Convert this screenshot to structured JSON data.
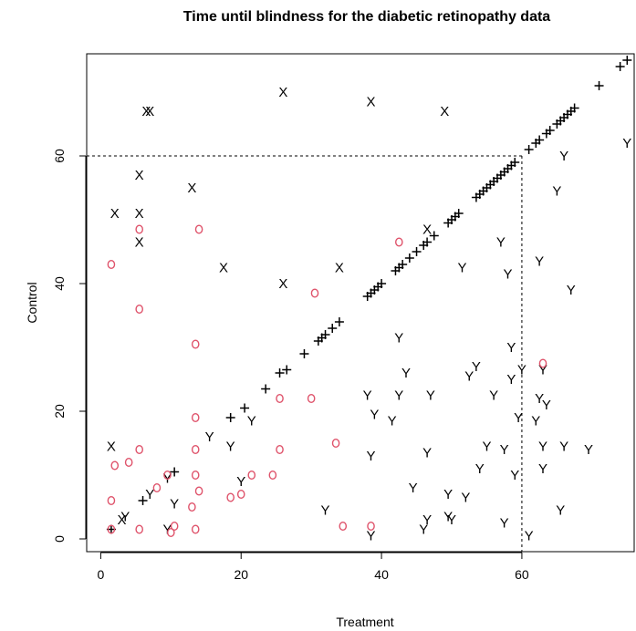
{
  "chart_data": {
    "type": "scatter",
    "title": "Time until blindness for the diabetic retinopathy data",
    "xlabel": "Treatment",
    "ylabel": "Control",
    "xlim": [
      -2,
      76
    ],
    "ylim": [
      -2,
      76
    ],
    "xticks": [
      0,
      20,
      40,
      60
    ],
    "yticks": [
      0,
      20,
      40,
      60
    ],
    "grid": false,
    "reference_lines": {
      "x": 60,
      "y": 60,
      "style": "dashed"
    },
    "colors": {
      "plus": "#000000",
      "X": "#000000",
      "Y": "#000000",
      "o": "#DF536B"
    },
    "series": [
      {
        "symbol": "+",
        "points": [
          [
            1.5,
            1.5
          ],
          [
            6,
            6
          ],
          [
            10.5,
            10.5
          ],
          [
            18.5,
            19
          ],
          [
            20.5,
            20.5
          ],
          [
            23.5,
            23.5
          ],
          [
            25.5,
            26
          ],
          [
            26.5,
            26.5
          ],
          [
            29,
            29
          ],
          [
            31,
            31
          ],
          [
            31.5,
            31.5
          ],
          [
            32,
            32
          ],
          [
            33,
            33
          ],
          [
            34,
            34
          ],
          [
            38,
            38
          ],
          [
            38.5,
            38.5
          ],
          [
            39,
            39
          ],
          [
            39.5,
            39.5
          ],
          [
            40,
            40
          ],
          [
            42,
            42
          ],
          [
            42.5,
            42.5
          ],
          [
            43,
            43
          ],
          [
            44,
            44
          ],
          [
            45,
            45
          ],
          [
            46,
            46
          ],
          [
            46.5,
            46.5
          ],
          [
            47.5,
            47.5
          ],
          [
            49.5,
            49.5
          ],
          [
            50,
            50
          ],
          [
            50.5,
            50.5
          ],
          [
            51,
            51
          ],
          [
            53.5,
            53.5
          ],
          [
            54,
            54
          ],
          [
            54.5,
            54.5
          ],
          [
            55,
            55
          ],
          [
            55.5,
            55.5
          ],
          [
            56,
            56
          ],
          [
            56.5,
            56.5
          ],
          [
            57,
            57
          ],
          [
            57.5,
            57.5
          ],
          [
            58,
            58
          ],
          [
            58.5,
            58.5
          ],
          [
            59,
            59
          ],
          [
            61,
            61
          ],
          [
            62,
            62
          ],
          [
            62.5,
            62.5
          ],
          [
            63.5,
            63.5
          ],
          [
            64,
            64
          ],
          [
            65,
            65
          ],
          [
            65.5,
            65.5
          ],
          [
            66,
            66
          ],
          [
            66.5,
            66.5
          ],
          [
            67,
            67
          ],
          [
            67.5,
            67.5
          ],
          [
            71,
            71
          ],
          [
            74,
            74
          ],
          [
            75,
            75
          ]
        ]
      },
      {
        "symbol": "X",
        "points": [
          [
            1.5,
            14.5
          ],
          [
            2,
            51
          ],
          [
            3,
            3
          ],
          [
            5.5,
            57
          ],
          [
            5.5,
            51
          ],
          [
            5.5,
            46.5
          ],
          [
            6.5,
            67
          ],
          [
            7,
            67
          ],
          [
            13,
            55
          ],
          [
            17.5,
            42.5
          ],
          [
            26,
            70
          ],
          [
            26,
            40
          ],
          [
            34,
            42.5
          ],
          [
            38.5,
            68.5
          ],
          [
            49,
            67
          ],
          [
            46.5,
            48.5
          ]
        ]
      },
      {
        "symbol": "Y",
        "points": [
          [
            3.5,
            3.5
          ],
          [
            7,
            7
          ],
          [
            9.5,
            9.5
          ],
          [
            10.5,
            5.5
          ],
          [
            9.5,
            1.5
          ],
          [
            15.5,
            16
          ],
          [
            18.5,
            14.5
          ],
          [
            20,
            9
          ],
          [
            21.5,
            18.5
          ],
          [
            32,
            4.5
          ],
          [
            38,
            22.5
          ],
          [
            38.5,
            13
          ],
          [
            38.5,
            0.5
          ],
          [
            39,
            19.5
          ],
          [
            41.5,
            18.5
          ],
          [
            42.5,
            22.5
          ],
          [
            42.5,
            31.5
          ],
          [
            43.5,
            26
          ],
          [
            44.5,
            8
          ],
          [
            46,
            1.5
          ],
          [
            46.5,
            13.5
          ],
          [
            46.5,
            3
          ],
          [
            47,
            22.5
          ],
          [
            49.5,
            7
          ],
          [
            49.5,
            3.5
          ],
          [
            50,
            3
          ],
          [
            51.5,
            42.5
          ],
          [
            52,
            6.5
          ],
          [
            52.5,
            25.5
          ],
          [
            53.5,
            27
          ],
          [
            54,
            11
          ],
          [
            55,
            14.5
          ],
          [
            56,
            22.5
          ],
          [
            57,
            46.5
          ],
          [
            57.5,
            14
          ],
          [
            57.5,
            2.5
          ],
          [
            58,
            41.5
          ],
          [
            58.5,
            30
          ],
          [
            58.5,
            25
          ],
          [
            59,
            10
          ],
          [
            59.5,
            19
          ],
          [
            60,
            26.5
          ],
          [
            61,
            0.5
          ],
          [
            62,
            18.5
          ],
          [
            62.5,
            43.5
          ],
          [
            62.5,
            22
          ],
          [
            63,
            26.5
          ],
          [
            63,
            14.5
          ],
          [
            63,
            11
          ],
          [
            63.5,
            21
          ],
          [
            65,
            54.5
          ],
          [
            65.5,
            4.5
          ],
          [
            66,
            60
          ],
          [
            66,
            14.5
          ],
          [
            67,
            39
          ],
          [
            69.5,
            14
          ],
          [
            75,
            62
          ]
        ]
      },
      {
        "symbol": "o",
        "points": [
          [
            1.5,
            43
          ],
          [
            1.5,
            6
          ],
          [
            1.5,
            1.5
          ],
          [
            2,
            11.5
          ],
          [
            4,
            12
          ],
          [
            5.5,
            48.5
          ],
          [
            5.5,
            36
          ],
          [
            5.5,
            14
          ],
          [
            5.5,
            1.5
          ],
          [
            8,
            8
          ],
          [
            9.5,
            10
          ],
          [
            10,
            1
          ],
          [
            10.5,
            2
          ],
          [
            13,
            5
          ],
          [
            13.5,
            10
          ],
          [
            13.5,
            14
          ],
          [
            13.5,
            1.5
          ],
          [
            13.5,
            19
          ],
          [
            13.5,
            30.5
          ],
          [
            14,
            7.5
          ],
          [
            14,
            48.5
          ],
          [
            18.5,
            6.5
          ],
          [
            20,
            7
          ],
          [
            21.5,
            10
          ],
          [
            24.5,
            10
          ],
          [
            25.5,
            22
          ],
          [
            25.5,
            14
          ],
          [
            30,
            22
          ],
          [
            30.5,
            38.5
          ],
          [
            33.5,
            15
          ],
          [
            34.5,
            2
          ],
          [
            38.5,
            2
          ],
          [
            42.5,
            46.5
          ],
          [
            63,
            27.5
          ]
        ]
      }
    ]
  }
}
